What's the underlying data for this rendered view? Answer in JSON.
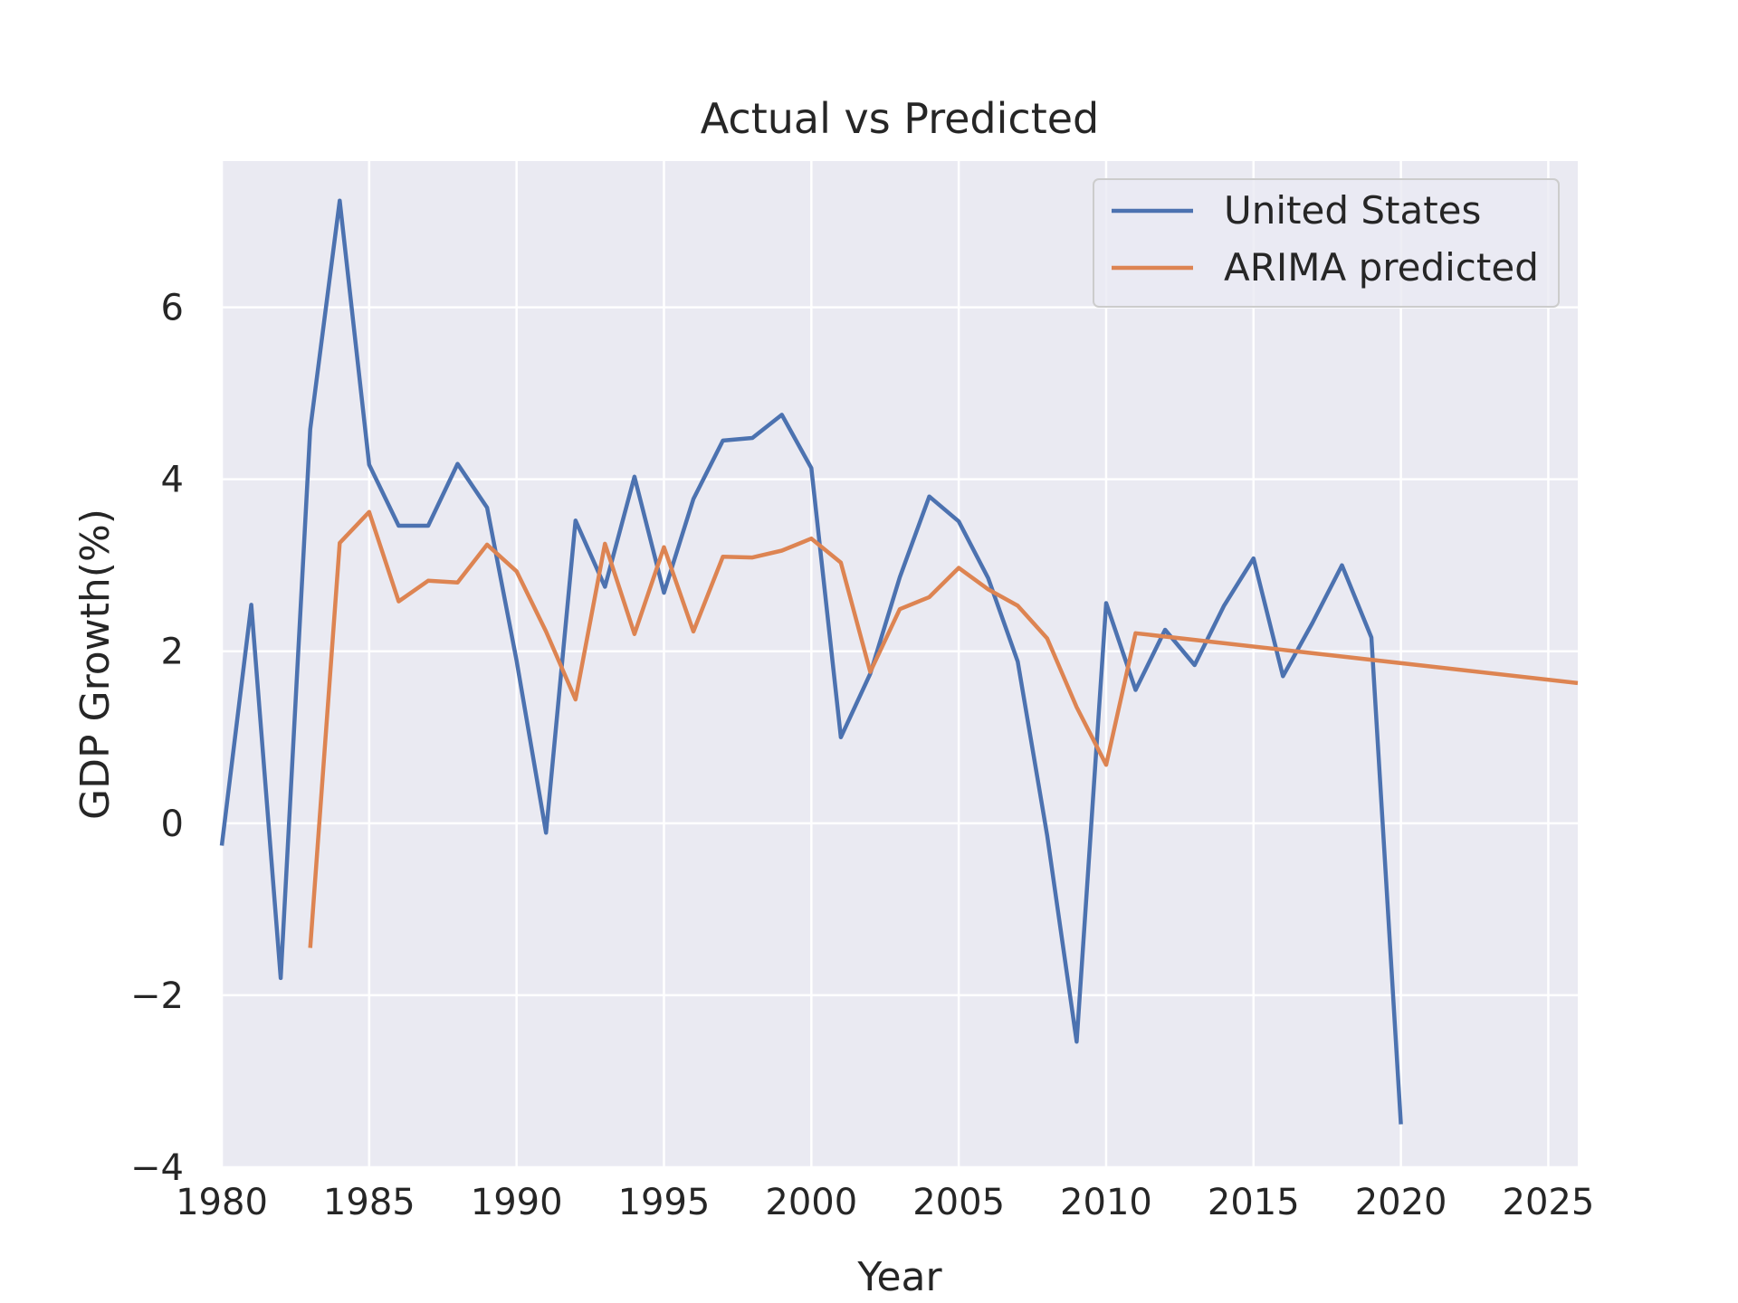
{
  "chart_data": {
    "type": "line",
    "title": "Actual vs Predicted",
    "xlabel": "Year",
    "ylabel": "GDP Growth(%)",
    "xlim": [
      1980,
      2026
    ],
    "ylim": [
      -4,
      7.7
    ],
    "x_ticks": [
      1980,
      1985,
      1990,
      1995,
      2000,
      2005,
      2010,
      2015,
      2020,
      2025
    ],
    "x_tick_labels": [
      "1980",
      "1985",
      "1990",
      "1995",
      "2000",
      "2005",
      "2010",
      "2015",
      "2020",
      "2025"
    ],
    "y_ticks": [
      -4,
      -2,
      0,
      2,
      4,
      6
    ],
    "y_tick_labels": [
      "−4",
      "−2",
      "0",
      "2",
      "4",
      "6"
    ],
    "grid": true,
    "legend_position": "top-right",
    "series": [
      {
        "name": "United States",
        "color": "#4c72b0",
        "x": [
          1980,
          1981,
          1982,
          1983,
          1984,
          1985,
          1986,
          1987,
          1988,
          1989,
          1990,
          1991,
          1992,
          1993,
          1994,
          1995,
          1996,
          1997,
          1998,
          1999,
          2000,
          2001,
          2002,
          2003,
          2004,
          2005,
          2006,
          2007,
          2008,
          2009,
          2010,
          2011,
          2012,
          2013,
          2014,
          2015,
          2016,
          2017,
          2018,
          2019,
          2020
        ],
        "y": [
          -0.26,
          2.54,
          -1.8,
          4.58,
          7.24,
          4.17,
          3.46,
          3.46,
          4.18,
          3.67,
          1.89,
          -0.11,
          3.52,
          2.75,
          4.03,
          2.68,
          3.77,
          4.45,
          4.48,
          4.75,
          4.13,
          1.0,
          1.74,
          2.86,
          3.8,
          3.51,
          2.85,
          1.88,
          -0.14,
          -2.54,
          2.56,
          1.55,
          2.25,
          1.84,
          2.53,
          3.08,
          1.71,
          2.33,
          3.0,
          2.16,
          -3.5
        ]
      },
      {
        "name": "ARIMA predicted",
        "color": "#dd8452",
        "x": [
          1983,
          1984,
          1985,
          1986,
          1987,
          1988,
          1989,
          1990,
          1991,
          1992,
          1993,
          1994,
          1995,
          1996,
          1997,
          1998,
          1999,
          2000,
          2001,
          2002,
          2003,
          2004,
          2005,
          2006,
          2007,
          2008,
          2009,
          2010,
          2011,
          2026
        ],
        "y": [
          -1.45,
          3.26,
          3.62,
          2.58,
          2.82,
          2.8,
          3.24,
          2.93,
          2.23,
          1.44,
          3.25,
          2.2,
          3.21,
          2.23,
          3.1,
          3.09,
          3.17,
          3.31,
          3.03,
          1.76,
          2.49,
          2.63,
          2.97,
          2.72,
          2.53,
          2.15,
          1.35,
          0.68,
          2.21,
          1.63
        ]
      }
    ]
  }
}
